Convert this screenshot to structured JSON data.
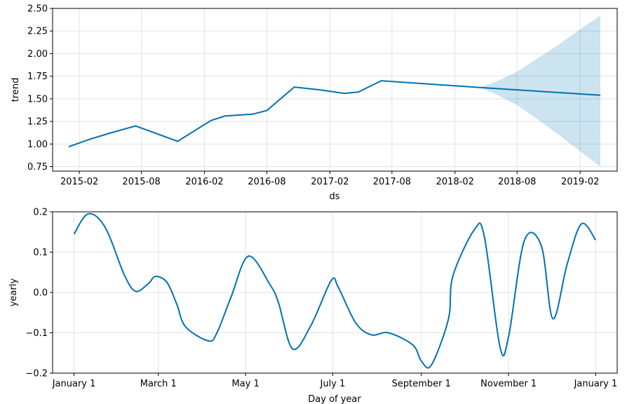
{
  "chart_data": [
    {
      "type": "line",
      "xlabel": "ds",
      "ylabel": "trend",
      "ylim": [
        0.7,
        2.5
      ],
      "xlim": [
        "2014-11-15",
        "2019-05-20"
      ],
      "grid": true,
      "x_ticks": [
        "2015-02",
        "2015-08",
        "2016-02",
        "2016-08",
        "2017-02",
        "2017-08",
        "2018-02",
        "2018-08",
        "2019-02"
      ],
      "x_tick_dates": [
        "2015-02-01",
        "2015-08-01",
        "2016-02-01",
        "2016-08-01",
        "2017-02-01",
        "2017-08-01",
        "2018-02-01",
        "2018-08-01",
        "2019-02-01"
      ],
      "y_ticks": [
        0.75,
        1.0,
        1.25,
        1.5,
        1.75,
        2.0,
        2.25,
        2.5
      ],
      "y_tick_labels": [
        "0.75",
        "1.00",
        "1.25",
        "1.50",
        "1.75",
        "2.00",
        "2.25",
        "2.50"
      ],
      "series": [
        {
          "color": "#0072B2",
          "x": [
            "2015-01-01",
            "2015-03-01",
            "2015-05-01",
            "2015-07-15",
            "2015-11-15",
            "2016-02-20",
            "2016-04-01",
            "2016-06-20",
            "2016-08-01",
            "2016-10-20",
            "2017-01-01",
            "2017-03-15",
            "2017-04-25",
            "2017-07-01",
            "2018-04-15",
            "2019-04-01"
          ],
          "y": [
            0.97,
            1.05,
            1.12,
            1.2,
            1.03,
            1.26,
            1.31,
            1.33,
            1.37,
            1.63,
            1.6,
            1.56,
            1.575,
            1.7,
            1.625,
            1.54
          ]
        }
      ],
      "uncertainty_band": {
        "color": "#0072B2",
        "opacity": 0.2,
        "x": [
          "2018-04-15",
          "2018-06-01",
          "2018-08-01",
          "2018-10-01",
          "2018-12-01",
          "2019-02-01",
          "2019-04-01"
        ],
        "lower": [
          1.625,
          1.55,
          1.43,
          1.27,
          1.1,
          0.92,
          0.75
        ],
        "upper": [
          1.625,
          1.69,
          1.8,
          1.95,
          2.1,
          2.27,
          2.42
        ]
      }
    },
    {
      "type": "line",
      "xlabel": "Day of year",
      "ylabel": "yearly",
      "ylim": [
        -0.2,
        0.2
      ],
      "xlim": [
        -15,
        380
      ],
      "grid": true,
      "x_ticks": [
        "January 1",
        "March 1",
        "May 1",
        "July 1",
        "September 1",
        "November 1",
        "January 1"
      ],
      "x_tick_days": [
        0,
        59,
        120,
        181,
        243,
        304,
        365
      ],
      "y_ticks": [
        -0.2,
        -0.1,
        0.0,
        0.1,
        0.2
      ],
      "y_tick_labels": [
        "−0.2",
        "−0.1",
        "0.0",
        "0.1",
        "0.2"
      ],
      "series": [
        {
          "color": "#0072B2",
          "x": [
            0,
            10,
            22,
            35,
            43,
            52,
            57,
            65,
            72,
            78,
            94,
            100,
            110,
            122,
            137,
            143,
            153,
            166,
            180,
            185,
            197,
            208,
            220,
            237,
            243,
            250,
            262,
            265,
            280,
            287,
            298,
            304,
            315,
            327,
            335,
            345,
            355,
            365
          ],
          "y": [
            0.145,
            0.195,
            0.16,
            0.045,
            0.003,
            0.022,
            0.04,
            0.025,
            -0.03,
            -0.085,
            -0.12,
            -0.1,
            -0.01,
            0.09,
            0.02,
            -0.025,
            -0.14,
            -0.08,
            0.03,
            0.012,
            -0.075,
            -0.105,
            -0.1,
            -0.13,
            -0.17,
            -0.18,
            -0.065,
            0.04,
            0.155,
            0.14,
            -0.135,
            -0.11,
            0.128,
            0.115,
            -0.065,
            0.07,
            0.17,
            0.13
          ]
        }
      ]
    }
  ]
}
